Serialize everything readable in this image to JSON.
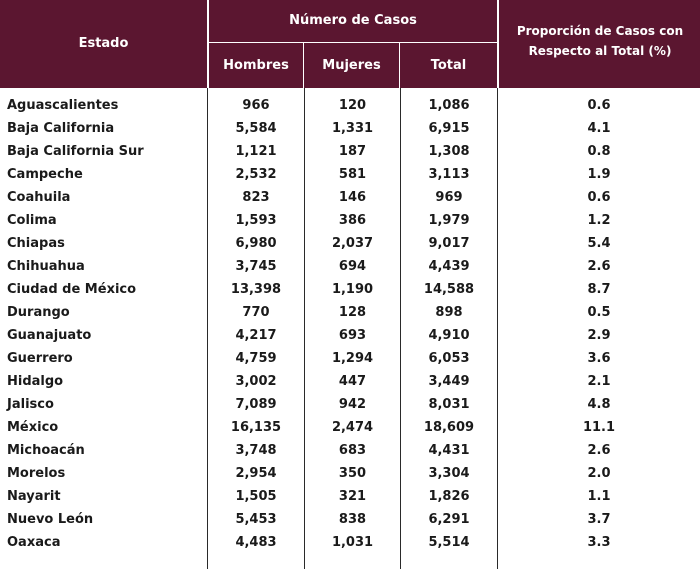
{
  "header": {
    "estado": "Estado",
    "numero_casos": "Número de Casos",
    "hombres": "Hombres",
    "mujeres": "Mujeres",
    "total": "Total",
    "proporcion": "Proporción de Casos con Respecto al Total (%)"
  },
  "colors": {
    "header_bg": "#5b1630"
  },
  "rows": [
    {
      "estado": "Aguascalientes",
      "hombres": "966",
      "mujeres": "120",
      "total": "1,086",
      "proporcion": "0.6"
    },
    {
      "estado": "Baja California",
      "hombres": "5,584",
      "mujeres": "1,331",
      "total": "6,915",
      "proporcion": "4.1"
    },
    {
      "estado": "Baja California Sur",
      "hombres": "1,121",
      "mujeres": "187",
      "total": "1,308",
      "proporcion": "0.8"
    },
    {
      "estado": "Campeche",
      "hombres": "2,532",
      "mujeres": "581",
      "total": "3,113",
      "proporcion": "1.9"
    },
    {
      "estado": "Coahuila",
      "hombres": "823",
      "mujeres": "146",
      "total": "969",
      "proporcion": "0.6"
    },
    {
      "estado": "Colima",
      "hombres": "1,593",
      "mujeres": "386",
      "total": "1,979",
      "proporcion": "1.2"
    },
    {
      "estado": "Chiapas",
      "hombres": "6,980",
      "mujeres": "2,037",
      "total": "9,017",
      "proporcion": "5.4"
    },
    {
      "estado": "Chihuahua",
      "hombres": "3,745",
      "mujeres": "694",
      "total": "4,439",
      "proporcion": "2.6"
    },
    {
      "estado": "Ciudad de México",
      "hombres": "13,398",
      "mujeres": "1,190",
      "total": "14,588",
      "proporcion": "8.7"
    },
    {
      "estado": "Durango",
      "hombres": "770",
      "mujeres": "128",
      "total": "898",
      "proporcion": "0.5"
    },
    {
      "estado": "Guanajuato",
      "hombres": "4,217",
      "mujeres": "693",
      "total": "4,910",
      "proporcion": "2.9"
    },
    {
      "estado": "Guerrero",
      "hombres": "4,759",
      "mujeres": "1,294",
      "total": "6,053",
      "proporcion": "3.6"
    },
    {
      "estado": "Hidalgo",
      "hombres": "3,002",
      "mujeres": "447",
      "total": "3,449",
      "proporcion": "2.1"
    },
    {
      "estado": "Jalisco",
      "hombres": "7,089",
      "mujeres": "942",
      "total": "8,031",
      "proporcion": "4.8"
    },
    {
      "estado": "México",
      "hombres": "16,135",
      "mujeres": "2,474",
      "total": "18,609",
      "proporcion": "11.1"
    },
    {
      "estado": "Michoacán",
      "hombres": "3,748",
      "mujeres": "683",
      "total": "4,431",
      "proporcion": "2.6"
    },
    {
      "estado": "Morelos",
      "hombres": "2,954",
      "mujeres": "350",
      "total": "3,304",
      "proporcion": "2.0"
    },
    {
      "estado": "Nayarit",
      "hombres": "1,505",
      "mujeres": "321",
      "total": "1,826",
      "proporcion": "1.1"
    },
    {
      "estado": "Nuevo León",
      "hombres": "5,453",
      "mujeres": "838",
      "total": "6,291",
      "proporcion": "3.7"
    },
    {
      "estado": "Oaxaca",
      "hombres": "4,483",
      "mujeres": "1,031",
      "total": "5,514",
      "proporcion": "3.3"
    }
  ]
}
